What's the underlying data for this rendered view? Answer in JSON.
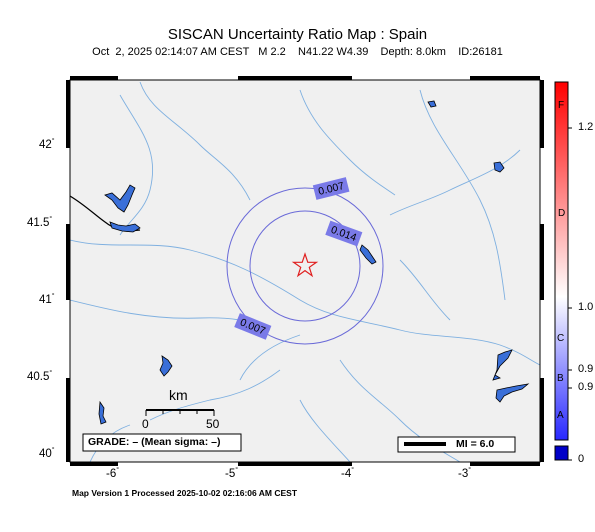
{
  "header": {
    "title": "SISCAN Uncertainty Ratio Map : Spain",
    "subtitle": "Oct  2, 2025 02:14:07 AM CEST   M 2.2    N41.22 W4.39    Depth: 8.0km    ID:26181"
  },
  "axes": {
    "lat_labels": [
      "42",
      "41.5",
      "41",
      "40.5",
      "40"
    ],
    "lon_labels": [
      "-6",
      "-5",
      "-4",
      "-3"
    ],
    "degree_mark": "°"
  },
  "map": {
    "epicenter": {
      "lat": 41.22,
      "lon": -4.39
    },
    "contour_labels": [
      "0.007",
      "0.014",
      "0.007"
    ],
    "land_color": "#f0f0f0",
    "river_color": "#7fb0e0",
    "water_color": "#3a6fd8",
    "contour_color": "#6a6ad8",
    "contour_label_bg": "#7a7ae8",
    "star_color": "#e02020"
  },
  "scale_bar": {
    "unit": "km",
    "labels": [
      "0",
      "50"
    ]
  },
  "grade_box": {
    "text": "GRADE: – (Mean sigma: –)"
  },
  "mi_legend": {
    "text": "MI = 6.0"
  },
  "colorbar": {
    "grade_letters": [
      "F",
      "D",
      "C",
      "B",
      "A"
    ],
    "tick_labels": [
      "1.2",
      "1.0",
      "0.9",
      "0.9",
      "0"
    ]
  },
  "footer": {
    "text": "Map Version 1 Processed 2025-10-02 02:16:06 AM CEST"
  }
}
